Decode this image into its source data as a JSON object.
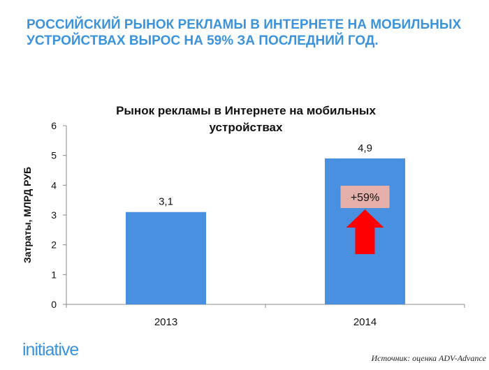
{
  "heading": "РОССИЙСКИЙ РЫНОК РЕКЛАМЫ В ИНТЕРНЕТЕ НА МОБИЛЬНЫХ УСТРОЙСТВАХ ВЫРОС НА 59% ЗА ПОСЛЕДНИЙ ГОД.",
  "logo": "initiative",
  "source": "Источник: оценка ADV-Advance",
  "colors": {
    "heading": "#3b93dc",
    "bar": "#4a90e0",
    "annotation_box": "#e6b0aa",
    "arrow": "#ff0000"
  },
  "chart_data": {
    "type": "bar",
    "title_lines": [
      "Рынок рекламы в Интернете на мобильных",
      "устройствах"
    ],
    "categories": [
      "2013",
      "2014"
    ],
    "values": [
      3.1,
      4.9
    ],
    "data_labels": [
      "3,1",
      "4,9"
    ],
    "xlabel": "",
    "ylabel": "Затраты, МЛРД РУБ",
    "ylim": [
      0,
      6
    ],
    "yticks": [
      0,
      1,
      2,
      3,
      4,
      5,
      6
    ],
    "grid": false,
    "annotation": {
      "text": "+59%",
      "category": "2014",
      "icon": "up-arrow-icon"
    }
  }
}
